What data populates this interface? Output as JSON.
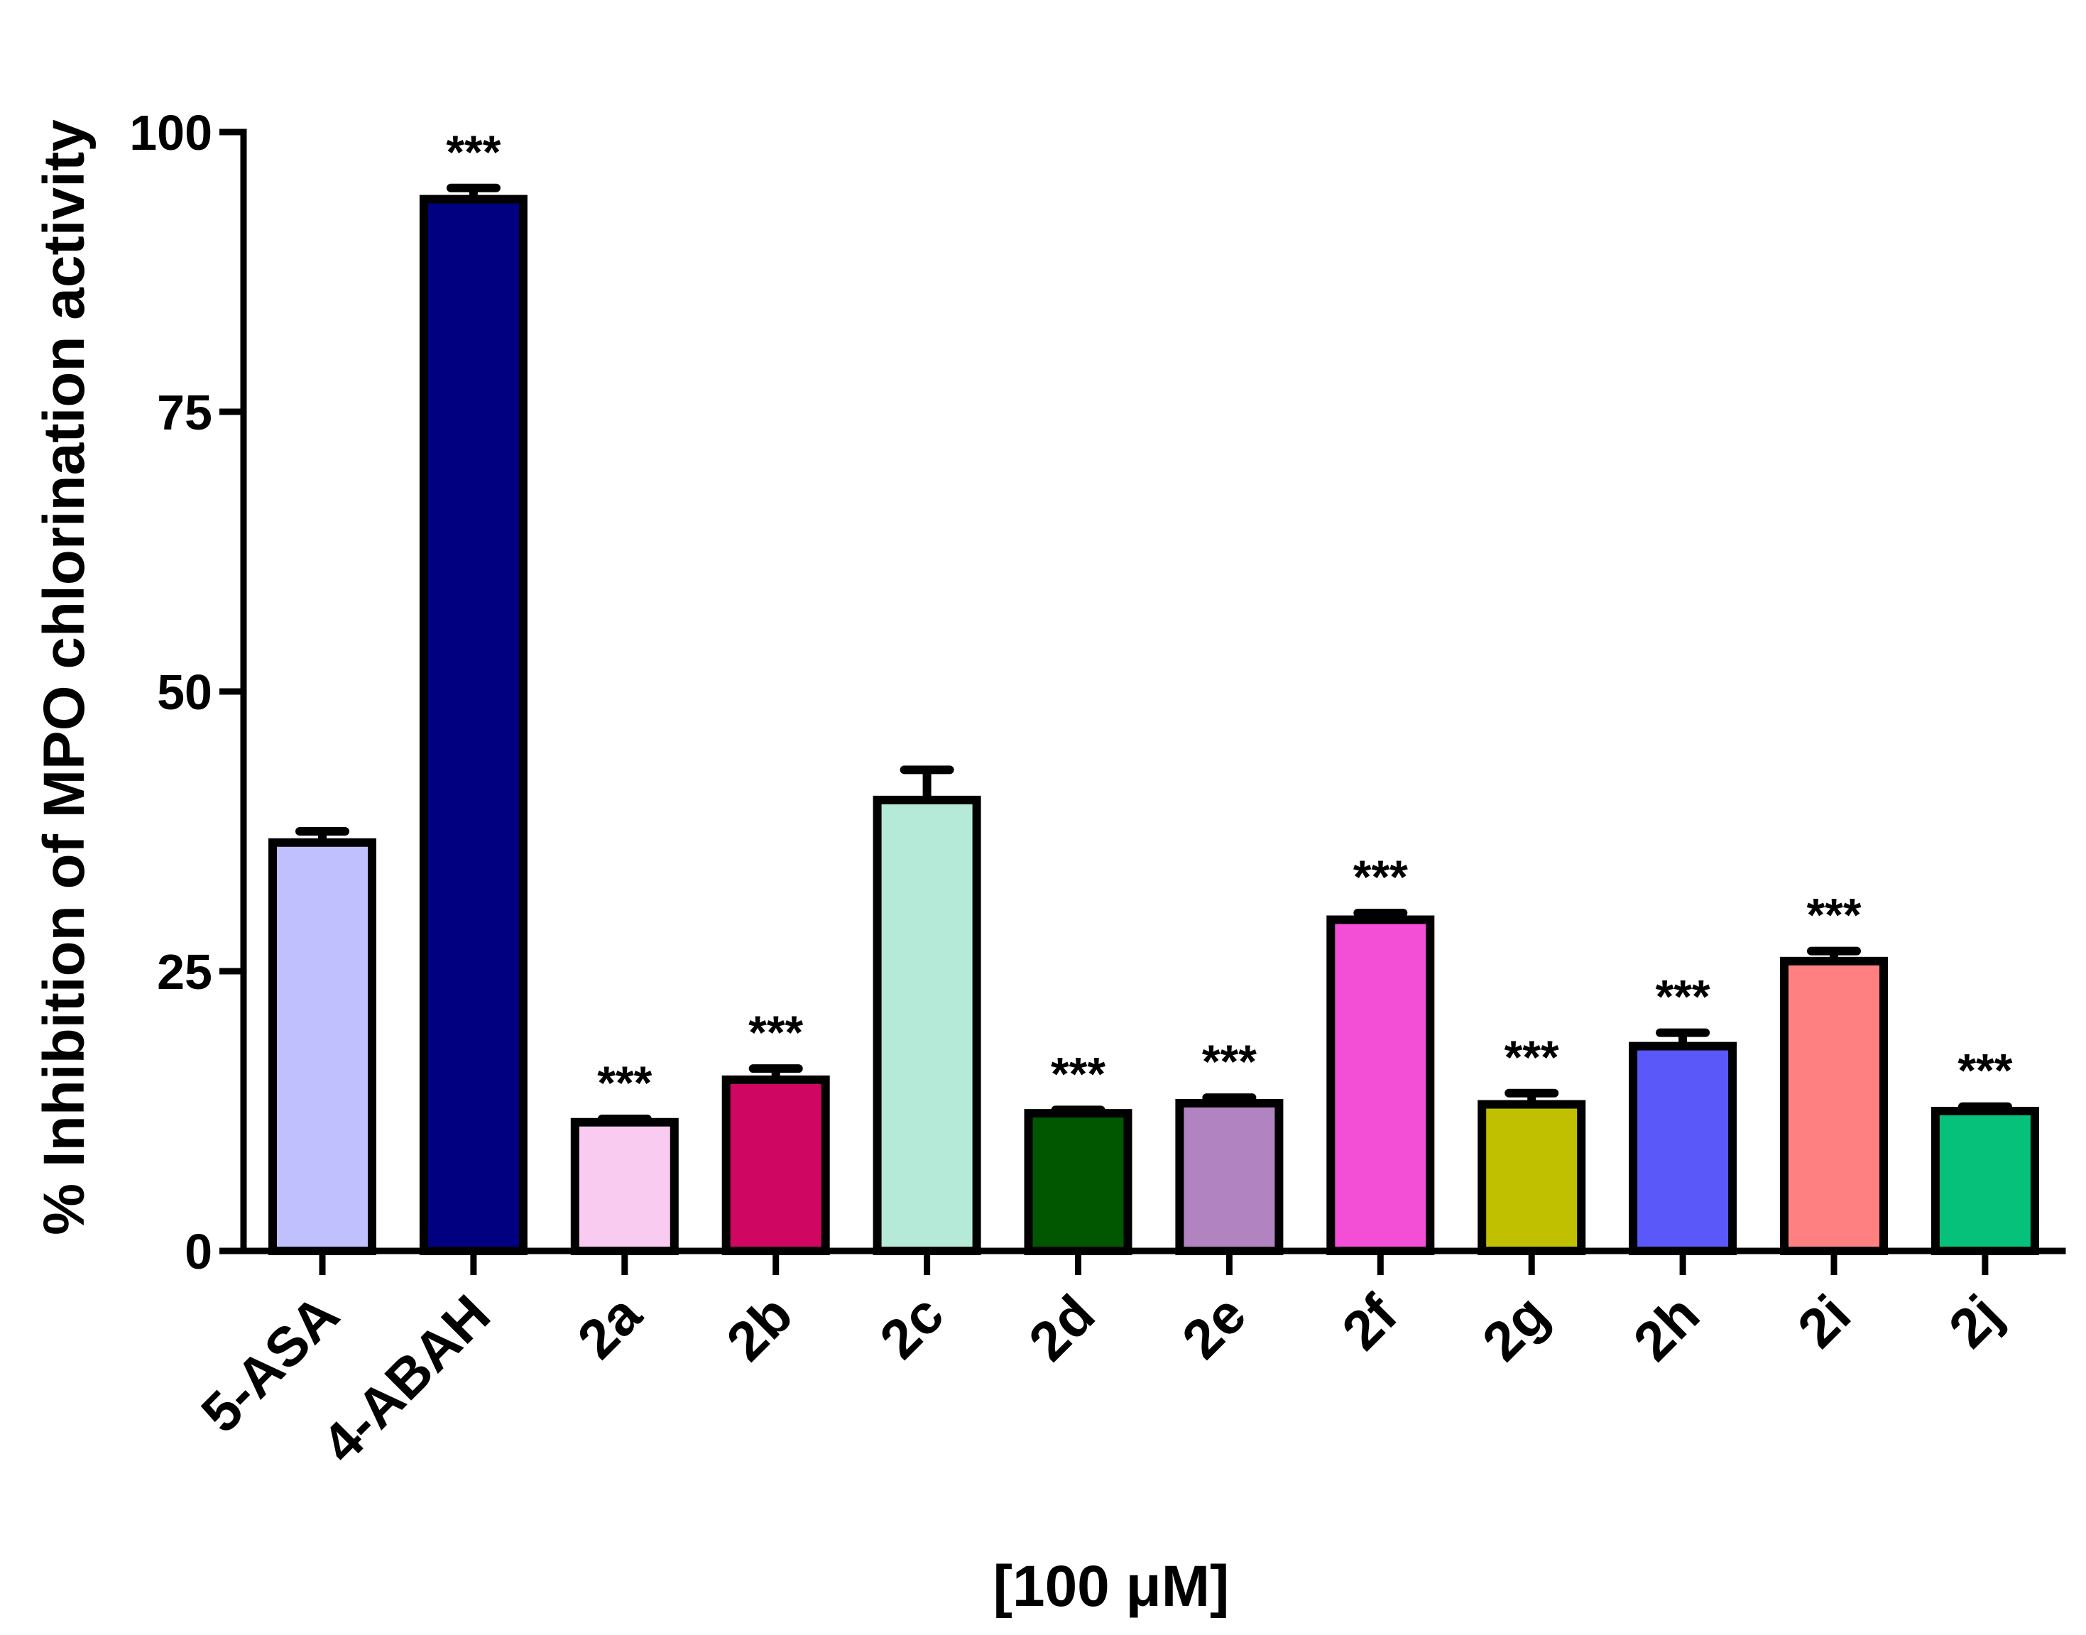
{
  "chart_data": {
    "type": "bar",
    "title": "",
    "ylabel": "% Inhibition of MPO chlorination activity",
    "xlabel": "[100 μM]",
    "ylim": [
      0,
      100
    ],
    "yticks": [
      "0",
      "25",
      "50",
      "75",
      "100"
    ],
    "ytick_values": [
      0,
      25,
      50,
      75,
      100
    ],
    "grid": false,
    "legend": "none",
    "categories": [
      "5-ASA",
      "4-ABAH",
      "2a",
      "2b",
      "2c",
      "2d",
      "2e",
      "2f",
      "2g",
      "2h",
      "2i",
      "2j"
    ],
    "values": [
      36.5,
      94.0,
      11.5,
      15.3,
      40.3,
      12.3,
      13.2,
      29.6,
      13.1,
      18.3,
      25.9,
      12.5
    ],
    "errors": [
      1.0,
      1.0,
      0.3,
      1.0,
      2.7,
      0.3,
      0.5,
      0.6,
      1.0,
      1.2,
      0.9,
      0.4
    ],
    "significance": [
      "",
      "***",
      "***",
      "***",
      "",
      "***",
      "***",
      "***",
      "***",
      "***",
      "***",
      "***"
    ],
    "colors": [
      "#c0c0fe",
      "#000080",
      "#f9cbf0",
      "#cf0763",
      "#b5ead9",
      "#005700",
      "#b184c1",
      "#f34ed6",
      "#c1c000",
      "#5a58f8",
      "#fe8080",
      "#05c17a"
    ]
  }
}
